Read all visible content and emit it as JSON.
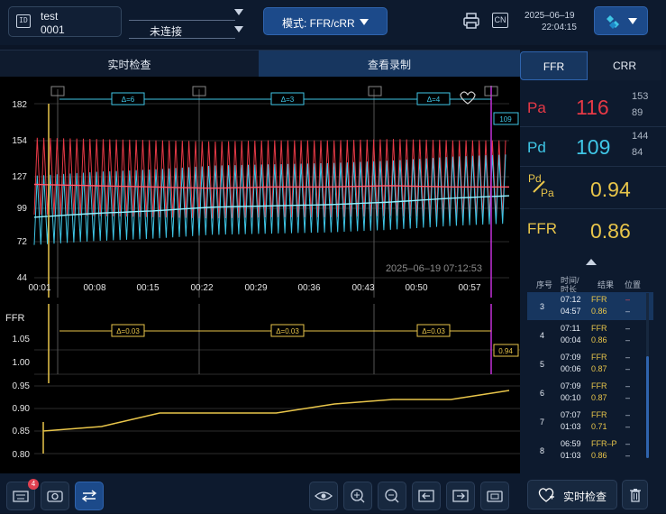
{
  "header": {
    "patient_name": "test",
    "patient_id": "0001",
    "connection_status": "未连接",
    "mode_label": "模式: FFR/cRR",
    "language": "CN",
    "date": "2025–06–19",
    "time": "22:04:15"
  },
  "tabs": {
    "live": "实时检查",
    "review": "查看录制"
  },
  "colors": {
    "pa": "#e63946",
    "pd": "#3fc6e6",
    "ffr": "#e8c54a",
    "marker": "#c230d9",
    "accent": "#1c4a8a"
  },
  "pressure_chart": {
    "y_ticks": [
      "182",
      "154",
      "127",
      "99",
      "72",
      "44"
    ],
    "x_ticks": [
      "00:01",
      "00:08",
      "00:15",
      "00:22",
      "00:29",
      "00:36",
      "00:43",
      "00:50",
      "00:57"
    ],
    "deltas": [
      "Δ=6",
      "Δ=3",
      "Δ=4"
    ],
    "cursor_value": "109",
    "timestamp": "2025–06–19 07:12:53"
  },
  "ffr_chart": {
    "label": "FFR",
    "y_ticks_upper": [
      "1.05",
      "1.00"
    ],
    "y_ticks_lower": [
      "0.95",
      "0.90",
      "0.85",
      "0.80"
    ],
    "deltas": [
      "Δ=0.03",
      "Δ=0.03",
      "Δ=0.03"
    ],
    "cursor_value": "0.94"
  },
  "chart_data": {
    "type": "line",
    "title": "",
    "xlabel": "",
    "ylabel": "",
    "x": [
      "00:01",
      "00:08",
      "00:15",
      "00:22",
      "00:29",
      "00:36",
      "00:43",
      "00:50",
      "00:57"
    ],
    "series": [
      {
        "name": "Pa",
        "values": [
          118,
          117,
          116,
          115,
          116,
          116,
          117,
          116,
          116
        ]
      },
      {
        "name": "Pd",
        "values": [
          92,
          95,
          97,
          100,
          101,
          102,
          104,
          107,
          109
        ]
      },
      {
        "name": "FFR",
        "values": [
          0.85,
          0.86,
          0.89,
          0.89,
          0.89,
          0.91,
          0.92,
          0.92,
          0.94
        ]
      }
    ],
    "ylim": [
      44,
      182
    ]
  },
  "toolbar": {
    "badge_count": "4"
  },
  "right": {
    "tab_ffr": "FFR",
    "tab_crr": "CRR",
    "pa": {
      "label": "Pa",
      "value": "116",
      "sys": "153",
      "dia": "89"
    },
    "pd": {
      "label": "Pd",
      "value": "109",
      "sys": "144",
      "dia": "84"
    },
    "pdpa": {
      "label_top": "Pd",
      "label_bottom": "Pa",
      "value": "0.94"
    },
    "ffr": {
      "label": "FFR",
      "value": "0.86"
    },
    "list_header": {
      "no": "序号",
      "time_top": "时间/",
      "time_bottom": "时长",
      "result": "结果",
      "position": "位置"
    },
    "records": [
      {
        "no": "3",
        "time": "07:12",
        "duration": "04:57",
        "type": "FFR",
        "value": "0.86",
        "pos1": "–",
        "pos2": "–"
      },
      {
        "no": "4",
        "time": "07:11",
        "duration": "00:04",
        "type": "FFR",
        "value": "0.86",
        "pos1": "–",
        "pos2": "–"
      },
      {
        "no": "5",
        "time": "07:09",
        "duration": "00:06",
        "type": "FFR",
        "value": "0.87",
        "pos1": "–",
        "pos2": "–"
      },
      {
        "no": "6",
        "time": "07:09",
        "duration": "00:10",
        "type": "FFR",
        "value": "0.87",
        "pos1": "–",
        "pos2": "–"
      },
      {
        "no": "7",
        "time": "07:07",
        "duration": "01:03",
        "type": "FFR",
        "value": "0.71",
        "pos1": "–",
        "pos2": "–"
      },
      {
        "no": "8",
        "time": "06:59",
        "duration": "01:03",
        "type": "FFR–P",
        "value": "0.86",
        "pos1": "–",
        "pos2": "–"
      }
    ],
    "live_button": "实时检查"
  }
}
